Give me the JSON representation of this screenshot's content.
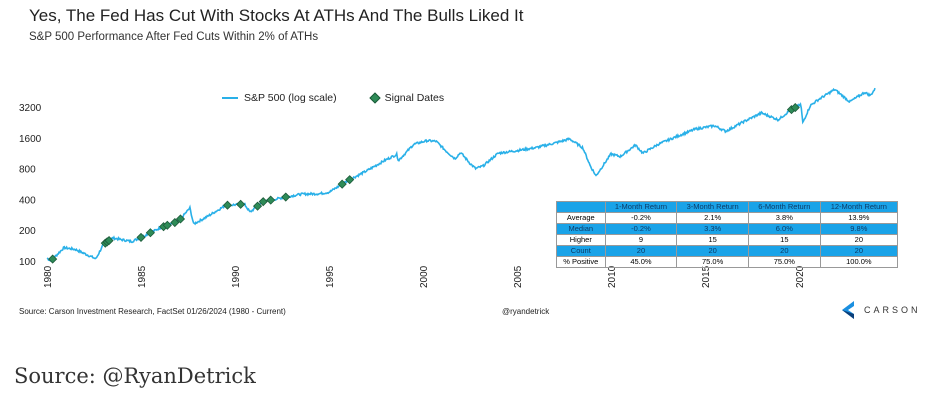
{
  "chart_data": {
    "type": "line",
    "title": "Yes, The Fed Has Cut With Stocks At ATHs And The Bulls Liked It",
    "subtitle": "S&P 500 Performance After Fed Cuts Within 2% of ATHs",
    "yscale": "log2",
    "ylim": [
      90,
      5200
    ],
    "xlim": [
      1979.9,
      2024.5
    ],
    "y_ticks": [
      "100",
      "200",
      "400",
      "800",
      "1600",
      "3200"
    ],
    "x_ticks": [
      "1980",
      "1985",
      "1990",
      "1995",
      "2000",
      "2005",
      "2010",
      "2015",
      "2020"
    ],
    "legend": {
      "series": "S&P 500 (log scale)",
      "markers": "Signal Dates",
      "placement": "top-center"
    },
    "series": [
      {
        "name": "S&P 500 (log scale)",
        "color": "#29b0e8",
        "x": [
          1980.0,
          1980.2,
          1980.9,
          1981.5,
          1982.6,
          1983.0,
          1983.5,
          1984.5,
          1985.0,
          1986.0,
          1987.0,
          1987.6,
          1987.8,
          1988.5,
          1989.5,
          1990.5,
          1990.8,
          1991.5,
          1992.5,
          1993.5,
          1994.5,
          1995.0,
          1996.0,
          1997.0,
          1998.0,
          1998.6,
          1998.7,
          1999.5,
          2000.2,
          2000.7,
          2001.2,
          2001.7,
          2002.0,
          2002.5,
          2002.8,
          2003.2,
          2004.0,
          2005.0,
          2006.0,
          2007.0,
          2007.8,
          2008.5,
          2008.9,
          2009.2,
          2010.0,
          2010.5,
          2011.3,
          2011.7,
          2012.5,
          2013.5,
          2014.5,
          2015.5,
          2016.1,
          2017.0,
          2018.0,
          2018.9,
          2019.5,
          2020.1,
          2020.2,
          2020.6,
          2021.0,
          2021.9,
          2022.7,
          2023.5,
          2023.8,
          2024.07
        ],
        "values": [
          107,
          100,
          135,
          130,
          105,
          145,
          168,
          155,
          170,
          210,
          245,
          330,
          230,
          270,
          350,
          360,
          300,
          380,
          415,
          450,
          455,
          470,
          610,
          760,
          970,
          1100,
          960,
          1380,
          1500,
          1480,
          1200,
          1000,
          1150,
          900,
          800,
          850,
          1130,
          1200,
          1280,
          1420,
          1560,
          1280,
          850,
          680,
          1110,
          1050,
          1360,
          1130,
          1380,
          1650,
          1950,
          2100,
          1850,
          2270,
          2800,
          2400,
          2950,
          3380,
          2250,
          3300,
          3750,
          4750,
          3600,
          4450,
          4150,
          4890
        ]
      }
    ],
    "signal_dates": [
      1980.3,
      1983.1,
      1983.2,
      1983.3,
      1985.0,
      1985.5,
      1986.2,
      1986.4,
      1986.8,
      1987.1,
      1989.6,
      1990.3,
      1991.2,
      1991.5,
      1991.9,
      1992.7,
      1995.7,
      1996.1,
      2019.6,
      2019.8
    ],
    "signal_color": "#2e8b57"
  },
  "table": {
    "headers": [
      "",
      "1-Month Return",
      "3-Month Return",
      "6-Month Return",
      "12-Month Return"
    ],
    "rows": [
      [
        "Average",
        "-0.2%",
        "2.1%",
        "3.8%",
        "13.9%"
      ],
      [
        "Median",
        "-0.2%",
        "3.3%",
        "6.0%",
        "9.8%"
      ],
      [
        "Higher",
        "9",
        "15",
        "15",
        "20"
      ],
      [
        "Count",
        "20",
        "20",
        "20",
        "20"
      ],
      [
        "% Positive",
        "45.0%",
        "75.0%",
        "75.0%",
        "100.0%"
      ]
    ]
  },
  "footer": {
    "source": "Source: Carson Investment Research, FactSet 01/26/2024 (1980 - Current)",
    "handle": "@ryandetrick",
    "logo": "CARSON"
  },
  "credit": "Source:  @RyanDetrick"
}
